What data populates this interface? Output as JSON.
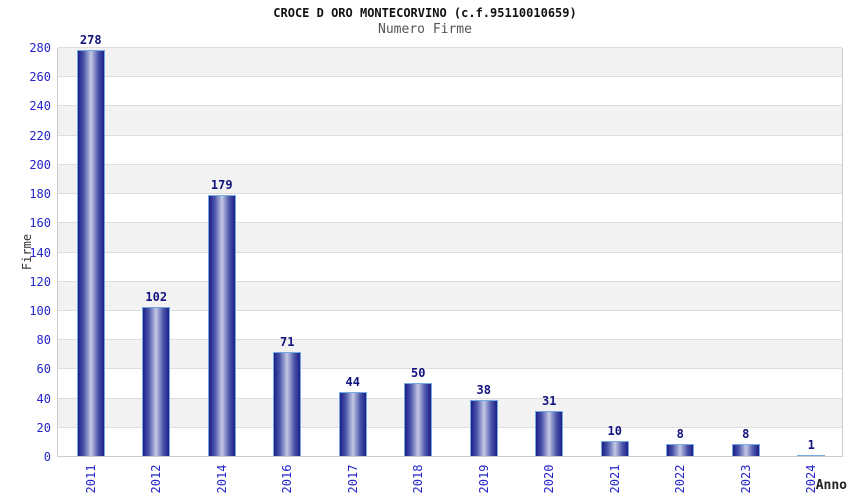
{
  "chart_data": {
    "type": "bar",
    "title": "CROCE D ORO MONTECORVINO (c.f.95110010659)",
    "subtitle": "Numero Firme",
    "xlabel": "Anno",
    "ylabel": "Firme",
    "categories": [
      "2011",
      "2012",
      "2014",
      "2016",
      "2017",
      "2018",
      "2019",
      "2020",
      "2021",
      "2022",
      "2023",
      "2024"
    ],
    "values": [
      278,
      102,
      179,
      71,
      44,
      50,
      38,
      31,
      10,
      8,
      8,
      1
    ],
    "ylim": [
      0,
      280
    ],
    "ytick_step": 20,
    "legend": "none",
    "grid": "horizontal-bands-alternating",
    "colors": {
      "band_gray": "#f2f2f2",
      "band_white": "#ffffff",
      "gridline": "#dddddd",
      "axis_line": "#cccccc",
      "tick_label": "#2424cc",
      "value_label": "#12127e",
      "bar_edge": "#1e1e88",
      "bar_center": "#c4c9e4",
      "bar_border": "#74aae2",
      "title": "#111111",
      "subtitle": "#555555",
      "axis_title": "#333333"
    }
  }
}
